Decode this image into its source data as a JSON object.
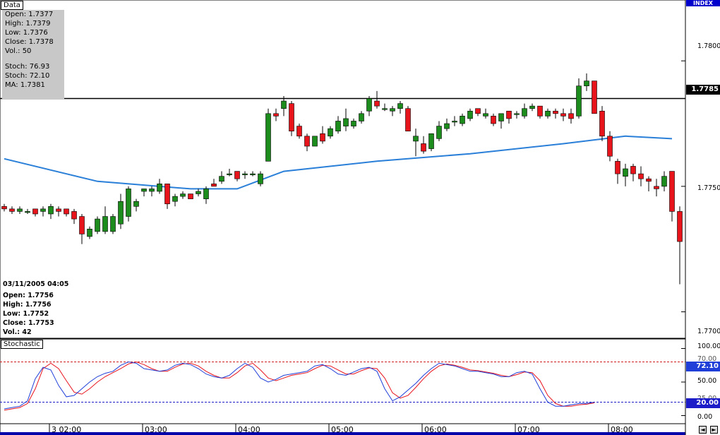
{
  "panels": {
    "data_tab": "Data",
    "stochastic_tab": "Stochastic",
    "index_label": "INDEX"
  },
  "ohlc_box": {
    "open": "Open: 1.7377",
    "high": "High: 1.7379",
    "low": "Low: 1.7376",
    "close": "Close: 1.7378",
    "vol": "Vol.: 50",
    "stoch1": "Stoch: 76.93",
    "stoch2": "Stoch: 72.10",
    "ma": "MA: 1.7381"
  },
  "hover_box": {
    "date": "03/11/2005 04:05",
    "open": "Open: 1.7756",
    "high": "High: 1.7756",
    "low": "Low: 1.7752",
    "close": "Close: 1.7753",
    "vol": "Vol.: 42"
  },
  "price_axis": {
    "ticks": [
      "1.7800",
      "1.7750",
      "1.7700"
    ],
    "level_label": "1.7785"
  },
  "stoch_axis": {
    "ticks": [
      "100.00",
      "50.00",
      "0.00"
    ],
    "partial_labels": [
      "70.00",
      "25.00"
    ],
    "value_label": "72.10",
    "lower_label": "20.00"
  },
  "time_axis": {
    "labels": [
      "3 02:00",
      "03:00",
      "04:00",
      "05:00",
      "06:00",
      "07:00",
      "08:00"
    ]
  },
  "colors": {
    "up": "#1c8c1c",
    "down": "#e8141c",
    "ma": "#2a7fd8",
    "stoch_k": "#1f3fd8",
    "stoch_d": "#e8141c",
    "level": "#000000",
    "upper_band": "#cc1c1c",
    "lower_band": "#1c1cc8"
  },
  "chart_data": [
    {
      "type": "candlestick",
      "ylim": [
        1.7692,
        1.7822
      ],
      "y_ticks": [
        1.77,
        1.775,
        1.78
      ],
      "x_tick_labels": [
        "3 02:00",
        "03:00",
        "04:00",
        "05:00",
        "06:00",
        "07:00",
        "08:00"
      ],
      "x_tick_index": [
        0,
        12,
        24,
        36,
        48,
        60,
        72
      ],
      "horizontal_level": 1.7785,
      "candles": [
        [
          1.7742,
          1.7743,
          1.774,
          1.7741
        ],
        [
          1.7741,
          1.7742,
          1.7739,
          1.774
        ],
        [
          1.774,
          1.7742,
          1.7739,
          1.7741
        ],
        [
          1.774,
          1.7741,
          1.7739,
          1.774
        ],
        [
          1.7741,
          1.7741,
          1.7738,
          1.7739
        ],
        [
          1.774,
          1.7742,
          1.7738,
          1.7741
        ],
        [
          1.7739,
          1.7743,
          1.7737,
          1.7742
        ],
        [
          1.7741,
          1.7742,
          1.7738,
          1.774
        ],
        [
          1.7741,
          1.7741,
          1.7738,
          1.7739
        ],
        [
          1.774,
          1.7741,
          1.7735,
          1.7737
        ],
        [
          1.7738,
          1.7739,
          1.7727,
          1.7731
        ],
        [
          1.773,
          1.7734,
          1.7729,
          1.7733
        ],
        [
          1.7732,
          1.7738,
          1.7731,
          1.7737
        ],
        [
          1.7732,
          1.7742,
          1.7731,
          1.7738
        ],
        [
          1.7732,
          1.7739,
          1.7731,
          1.7738
        ],
        [
          1.7735,
          1.7747,
          1.7733,
          1.7744
        ],
        [
          1.7738,
          1.775,
          1.7736,
          1.7749
        ],
        [
          1.7742,
          1.7745,
          1.774,
          1.7744
        ],
        [
          1.7748,
          1.7749,
          1.7746,
          1.7749
        ],
        [
          1.7748,
          1.775,
          1.7746,
          1.7749
        ],
        [
          1.7748,
          1.7753,
          1.7747,
          1.7751
        ],
        [
          1.7751,
          1.7751,
          1.7741,
          1.7743
        ],
        [
          1.7744,
          1.7747,
          1.7742,
          1.7746
        ],
        [
          1.7746,
          1.7748,
          1.7745,
          1.7747
        ],
        [
          1.7747,
          1.7747,
          1.7745,
          1.7745
        ],
        [
          1.7747,
          1.7749,
          1.7746,
          1.7748
        ],
        [
          1.7745,
          1.775,
          1.7743,
          1.7749
        ],
        [
          1.7751,
          1.7753,
          1.775,
          1.775
        ],
        [
          1.7752,
          1.7756,
          1.7751,
          1.7754
        ],
        [
          1.7755,
          1.7757,
          1.7754,
          1.7755
        ],
        [
          1.7756,
          1.7756,
          1.7752,
          1.7753
        ],
        [
          1.7755,
          1.7756,
          1.7753,
          1.7755
        ],
        [
          1.7755,
          1.7756,
          1.7754,
          1.7755
        ],
        [
          1.7751,
          1.7756,
          1.775,
          1.7755
        ],
        [
          1.776,
          1.7781,
          1.776,
          1.7779
        ],
        [
          1.7779,
          1.7781,
          1.7776,
          1.7778
        ],
        [
          1.7781,
          1.7786,
          1.7778,
          1.7784
        ],
        [
          1.7783,
          1.7784,
          1.777,
          1.7772
        ],
        [
          1.7774,
          1.7775,
          1.7769,
          1.777
        ],
        [
          1.777,
          1.7771,
          1.7764,
          1.7766
        ],
        [
          1.7766,
          1.777,
          1.7766,
          1.777
        ],
        [
          1.7771,
          1.7774,
          1.7767,
          1.7768
        ],
        [
          1.777,
          1.7774,
          1.7769,
          1.7773
        ],
        [
          1.7772,
          1.7778,
          1.7771,
          1.7776
        ],
        [
          1.7774,
          1.7781,
          1.7772,
          1.7777
        ],
        [
          1.7774,
          1.7777,
          1.7773,
          1.7776
        ],
        [
          1.7776,
          1.778,
          1.7775,
          1.7779
        ],
        [
          1.778,
          1.7786,
          1.7778,
          1.7785
        ],
        [
          1.7784,
          1.7788,
          1.7781,
          1.7782
        ],
        [
          1.7781,
          1.7783,
          1.778,
          1.7781
        ],
        [
          1.778,
          1.7782,
          1.7778,
          1.7781
        ],
        [
          1.7781,
          1.7784,
          1.7779,
          1.7783
        ],
        [
          1.7781,
          1.7782,
          1.7772,
          1.7772
        ],
        [
          1.7768,
          1.7773,
          1.7762,
          1.777
        ],
        [
          1.7767,
          1.777,
          1.7763,
          1.7764
        ],
        [
          1.7765,
          1.777,
          1.7764,
          1.7771
        ],
        [
          1.7769,
          1.7776,
          1.7768,
          1.7774
        ],
        [
          1.7773,
          1.7777,
          1.7772,
          1.7775
        ],
        [
          1.7776,
          1.7778,
          1.7774,
          1.7776
        ],
        [
          1.7775,
          1.7779,
          1.7774,
          1.7778
        ],
        [
          1.7777,
          1.7781,
          1.7776,
          1.778
        ],
        [
          1.7781,
          1.7781,
          1.7778,
          1.7779
        ],
        [
          1.7778,
          1.7781,
          1.7777,
          1.7779
        ],
        [
          1.7778,
          1.7779,
          1.7774,
          1.7775
        ],
        [
          1.7776,
          1.7779,
          1.7773,
          1.7779
        ],
        [
          1.778,
          1.778,
          1.7775,
          1.7777
        ],
        [
          1.7779,
          1.778,
          1.7777,
          1.7779
        ],
        [
          1.7778,
          1.7783,
          1.7777,
          1.7781
        ],
        [
          1.7781,
          1.7783,
          1.778,
          1.7782
        ],
        [
          1.7782,
          1.7782,
          1.7777,
          1.7778
        ],
        [
          1.7778,
          1.7781,
          1.7777,
          1.778
        ],
        [
          1.778,
          1.7781,
          1.7777,
          1.7779
        ],
        [
          1.7779,
          1.7781,
          1.7776,
          1.7778
        ],
        [
          1.7779,
          1.7781,
          1.7775,
          1.7777
        ],
        [
          1.7778,
          1.7793,
          1.7777,
          1.779
        ],
        [
          1.779,
          1.7795,
          1.7788,
          1.7792
        ],
        [
          1.7792,
          1.7792,
          1.7779,
          1.7779
        ],
        [
          1.778,
          1.7782,
          1.7768,
          1.777
        ],
        [
          1.777,
          1.7772,
          1.776,
          1.7762
        ],
        [
          1.776,
          1.7761,
          1.7751,
          1.7755
        ],
        [
          1.7754,
          1.7759,
          1.775,
          1.7757
        ],
        [
          1.7758,
          1.7759,
          1.7752,
          1.7755
        ],
        [
          1.7755,
          1.7758,
          1.775,
          1.7753
        ],
        [
          1.7753,
          1.7754,
          1.7748,
          1.7752
        ],
        [
          1.775,
          1.7753,
          1.7746,
          1.7749
        ],
        [
          1.775,
          1.7756,
          1.7748,
          1.7754
        ],
        [
          1.7756,
          1.7756,
          1.7736,
          1.774
        ],
        [
          1.774,
          1.7742,
          1.7711,
          1.7728
        ]
      ],
      "moving_average": [
        [
          0,
          1.7761
        ],
        [
          12,
          1.7752
        ],
        [
          24,
          1.7749
        ],
        [
          30,
          1.7749
        ],
        [
          36,
          1.7756
        ],
        [
          48,
          1.776
        ],
        [
          60,
          1.7763
        ],
        [
          72,
          1.7767
        ],
        [
          80,
          1.777
        ],
        [
          86,
          1.7769
        ]
      ]
    },
    {
      "type": "line",
      "ylim": [
        -10,
        110
      ],
      "y_ticks": [
        0,
        50,
        100
      ],
      "bands": [
        80,
        20
      ],
      "series": [
        {
          "values": [
            10,
            12,
            14,
            22,
            55,
            72,
            68,
            45,
            28,
            30,
            40,
            50,
            58,
            63,
            66,
            75,
            80,
            78,
            70,
            68,
            66,
            68,
            75,
            78,
            76,
            70,
            62,
            58,
            56,
            60,
            70,
            78,
            72,
            56,
            50,
            54,
            60,
            62,
            64,
            66,
            74,
            76,
            70,
            62,
            60,
            65,
            70,
            72,
            66,
            40,
            22,
            28,
            38,
            48,
            60,
            70,
            78,
            76,
            74,
            70,
            66,
            66,
            64,
            62,
            58,
            58,
            64,
            66,
            62,
            40,
            20,
            14,
            14,
            16,
            18,
            18,
            20
          ]
        },
        {
          "values": [
            8,
            10,
            12,
            18,
            40,
            70,
            78,
            70,
            52,
            35,
            32,
            40,
            50,
            58,
            64,
            70,
            77,
            80,
            76,
            70,
            66,
            66,
            72,
            77,
            78,
            74,
            66,
            60,
            56,
            56,
            64,
            74,
            78,
            68,
            56,
            52,
            56,
            60,
            62,
            64,
            70,
            75,
            74,
            68,
            62,
            62,
            67,
            71,
            70,
            56,
            34,
            26,
            30,
            42,
            55,
            66,
            74,
            77,
            75,
            72,
            68,
            67,
            65,
            63,
            60,
            58,
            61,
            65,
            64,
            52,
            30,
            18,
            14,
            14,
            16,
            17,
            19
          ]
        }
      ]
    }
  ]
}
